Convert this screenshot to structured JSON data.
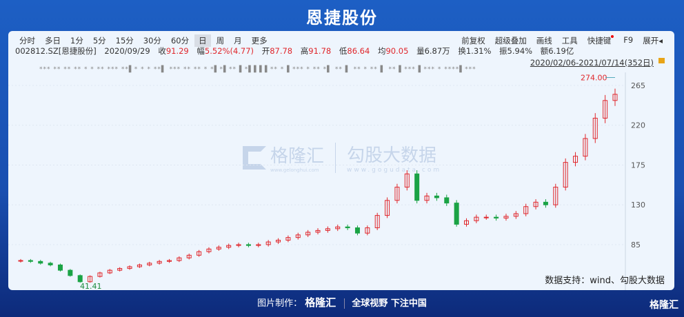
{
  "header": {
    "title": "恩捷股份"
  },
  "toolbar": {
    "periods": [
      "分时",
      "多日",
      "1分",
      "5分",
      "15分",
      "30分",
      "60分",
      "日",
      "周",
      "月",
      "更多"
    ],
    "selected": "日",
    "right": [
      "前复权",
      "超级叠加",
      "画线",
      "工具",
      "快捷键",
      "F9",
      "展开◂"
    ]
  },
  "info": {
    "code": "002812.SZ[恩捷股份]",
    "date": "2020/09/29",
    "close_label": "收",
    "close": "91.29",
    "change_label": "幅",
    "change": "5.52%(4.77)",
    "open_label": "开",
    "open": "87.78",
    "high_label": "高",
    "high": "91.78",
    "low_label": "低",
    "low": "86.64",
    "avg_label": "均",
    "avg": "90.05",
    "volume": "量6.87万",
    "turnover": "换1.31%",
    "amplitude": "振5.94%",
    "amount": "额6.19亿"
  },
  "range": "2020/02/06-2021/07/14(352日)",
  "markers": "*** ** ** ** *  *  **  ***  **▌*  *  * **▌ *** ** **  *  *▌*▌** ▌*▌▌▌▌** *  ▌*** *  **  *▌ ** ▌ ** *  ** ▌ **  ▌*** ▌*** *  ****▌***",
  "watermark": {
    "brand": "格隆汇",
    "brand_url": "www.gelonghui.com",
    "brand2": "勾股大数据",
    "brand2_url": "www.gogudata.com"
  },
  "source": "数据支持：wind、勾股大数据",
  "footer": {
    "made_by": "图片制作：",
    "brand": "格隆汇",
    "slogan": "全球视野 下注中国",
    "corner": "格隆汇"
  },
  "colors": {
    "up": "#e0262b",
    "down": "#1aa345"
  },
  "chart_data": {
    "type": "candlestick",
    "x_range": [
      "2020/02/06",
      "2021/07/14"
    ],
    "yticks": [
      85,
      130,
      175,
      220,
      265
    ],
    "ylim": [
      38,
      280
    ],
    "max_label": "274.00",
    "min_label": "41.41",
    "closes": [
      67,
      66,
      64,
      62,
      56,
      50,
      43,
      49,
      53,
      56,
      58,
      60,
      62,
      64,
      66,
      67,
      70,
      73,
      77,
      80,
      82,
      84,
      85,
      84,
      85,
      88,
      90,
      93,
      96,
      99,
      101,
      103,
      105,
      104,
      98,
      104,
      118,
      135,
      150,
      165,
      135,
      140,
      138,
      132,
      108,
      112,
      116,
      116,
      115,
      117,
      120,
      128,
      133,
      130,
      150,
      178,
      185,
      205,
      228,
      248,
      255
    ]
  }
}
